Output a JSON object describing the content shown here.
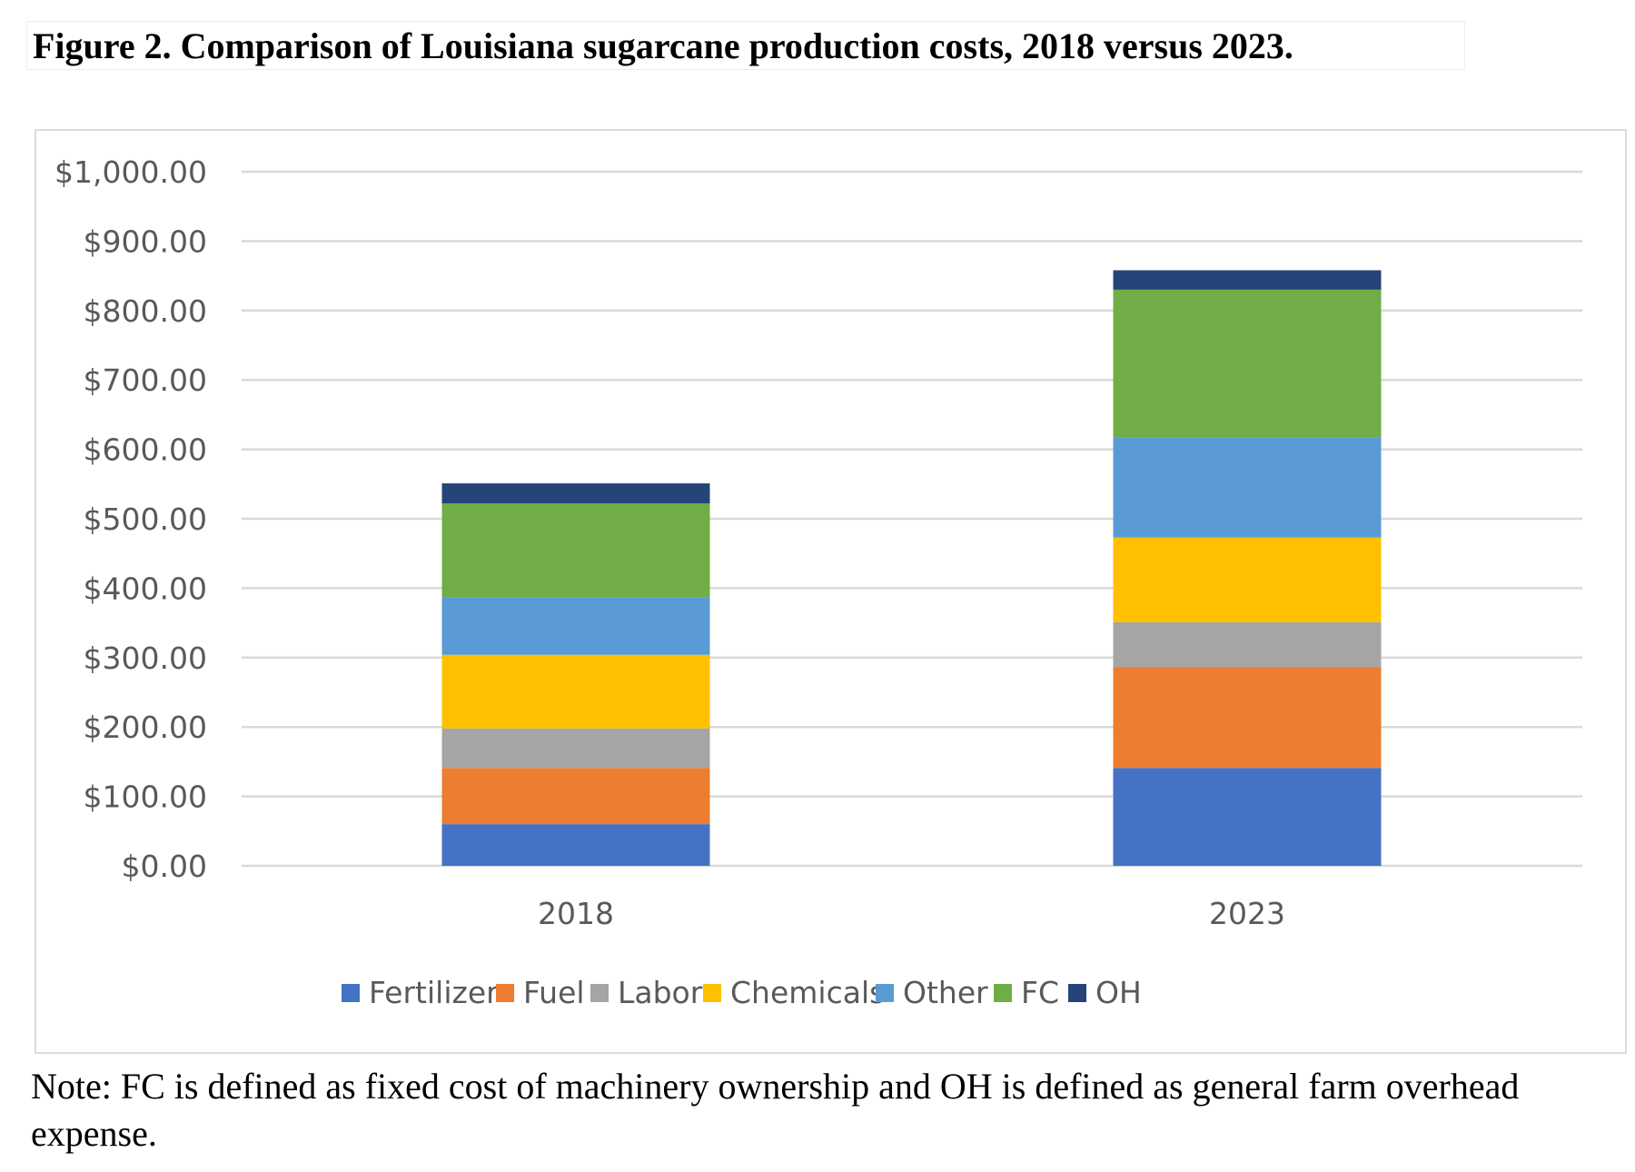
{
  "title": "Figure 2. Comparison of Louisiana sugarcane production costs, 2018 versus 2023.",
  "note": "Note: FC is defined as fixed cost of machinery ownership and OH is defined as general farm overhead expense.",
  "chart_data": {
    "type": "bar",
    "stacked": true,
    "categories": [
      "2018",
      "2023"
    ],
    "ylim": [
      0,
      1000
    ],
    "yticks": [
      "$0.00",
      "$100.00",
      "$200.00",
      "$300.00",
      "$400.00",
      "$500.00",
      "$600.00",
      "$700.00",
      "$800.00",
      "$900.00",
      "$1,000.00"
    ],
    "grid": true,
    "legend": "bottom",
    "series": [
      {
        "name": "Fertilizer",
        "color": "#4472C4",
        "values": [
          60,
          141
        ]
      },
      {
        "name": "Fuel",
        "color": "#ED7D31",
        "values": [
          81,
          145
        ]
      },
      {
        "name": "Labor",
        "color": "#A5A5A5",
        "values": [
          57,
          65
        ]
      },
      {
        "name": "Chemicals",
        "color": "#FFC000",
        "values": [
          106,
          122
        ]
      },
      {
        "name": "Other",
        "color": "#5B9BD5",
        "values": [
          83,
          144
        ]
      },
      {
        "name": "FC",
        "color": "#70AD47",
        "values": [
          135,
          213
        ]
      },
      {
        "name": "OH",
        "color": "#264478",
        "values": [
          29,
          28
        ]
      }
    ]
  }
}
